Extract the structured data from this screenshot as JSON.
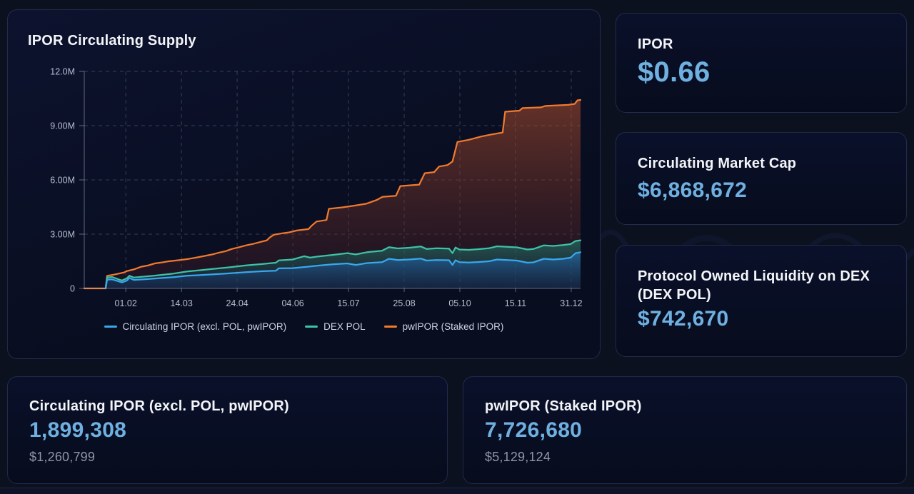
{
  "chart_card": {
    "title": "IPOR Circulating Supply"
  },
  "chart_data": {
    "type": "area",
    "title": "IPOR Circulating Supply",
    "unit": "IPOR tokens, millions",
    "stacked": true,
    "grid": true,
    "legend_position": "bottom",
    "ylim": [
      0,
      12
    ],
    "y_tick_values": [
      0,
      3,
      6,
      9,
      12
    ],
    "y_tick_labels": [
      "0",
      "3.00M",
      "6.00M",
      "9.00M",
      "12.0M"
    ],
    "x_tick_labels": [
      "01.02",
      "14.03",
      "24.04",
      "04.06",
      "15.07",
      "25.08",
      "05.10",
      "15.11",
      "31.12"
    ],
    "x_tick_first_frac": 0.0837,
    "x_tick_step_frac": 0.11219,
    "series": [
      {
        "name": "Circulating IPOR (excl. POL, pwIPOR)",
        "color": "#38a7ec",
        "fill_top": "rgba(40,125,215,0.50)",
        "fill_bottom": "rgba(15,50,110,0.25)",
        "points": [
          [
            0.043,
            0
          ],
          [
            0.046,
            0.48
          ],
          [
            0.056,
            0.5
          ],
          [
            0.066,
            0.42
          ],
          [
            0.076,
            0.33
          ],
          [
            0.086,
            0.44
          ],
          [
            0.091,
            0.58
          ],
          [
            0.1,
            0.47
          ],
          [
            0.12,
            0.5
          ],
          [
            0.14,
            0.54
          ],
          [
            0.16,
            0.58
          ],
          [
            0.18,
            0.62
          ],
          [
            0.206,
            0.7
          ],
          [
            0.23,
            0.73
          ],
          [
            0.26,
            0.78
          ],
          [
            0.29,
            0.83
          ],
          [
            0.326,
            0.9
          ],
          [
            0.36,
            0.95
          ],
          [
            0.386,
            0.98
          ],
          [
            0.392,
            1.11
          ],
          [
            0.42,
            1.12
          ],
          [
            0.45,
            1.2
          ],
          [
            0.47,
            1.26
          ],
          [
            0.5,
            1.33
          ],
          [
            0.53,
            1.38
          ],
          [
            0.547,
            1.3
          ],
          [
            0.57,
            1.4
          ],
          [
            0.6,
            1.45
          ],
          [
            0.614,
            1.64
          ],
          [
            0.632,
            1.57
          ],
          [
            0.655,
            1.6
          ],
          [
            0.678,
            1.65
          ],
          [
            0.69,
            1.54
          ],
          [
            0.71,
            1.57
          ],
          [
            0.735,
            1.56
          ],
          [
            0.742,
            1.3
          ],
          [
            0.748,
            1.56
          ],
          [
            0.756,
            1.45
          ],
          [
            0.775,
            1.43
          ],
          [
            0.795,
            1.46
          ],
          [
            0.815,
            1.5
          ],
          [
            0.832,
            1.6
          ],
          [
            0.852,
            1.57
          ],
          [
            0.872,
            1.54
          ],
          [
            0.893,
            1.42
          ],
          [
            0.905,
            1.44
          ],
          [
            0.926,
            1.64
          ],
          [
            0.945,
            1.6
          ],
          [
            0.965,
            1.64
          ],
          [
            0.98,
            1.7
          ],
          [
            0.99,
            1.95
          ],
          [
            1,
            2.0
          ]
        ]
      },
      {
        "name": "DEX POL",
        "color": "#3dc2a6",
        "fill_top": "rgba(35,160,135,0.45)",
        "fill_bottom": "rgba(15,70,85,0.25)",
        "points": [
          [
            0.043,
            0
          ],
          [
            0.046,
            0.6
          ],
          [
            0.056,
            0.63
          ],
          [
            0.066,
            0.53
          ],
          [
            0.076,
            0.44
          ],
          [
            0.086,
            0.56
          ],
          [
            0.091,
            0.7
          ],
          [
            0.1,
            0.6
          ],
          [
            0.12,
            0.65
          ],
          [
            0.14,
            0.7
          ],
          [
            0.16,
            0.76
          ],
          [
            0.18,
            0.82
          ],
          [
            0.206,
            0.93
          ],
          [
            0.23,
            1.0
          ],
          [
            0.26,
            1.08
          ],
          [
            0.29,
            1.16
          ],
          [
            0.326,
            1.27
          ],
          [
            0.36,
            1.35
          ],
          [
            0.386,
            1.42
          ],
          [
            0.392,
            1.55
          ],
          [
            0.42,
            1.6
          ],
          [
            0.443,
            1.78
          ],
          [
            0.455,
            1.7
          ],
          [
            0.47,
            1.76
          ],
          [
            0.5,
            1.85
          ],
          [
            0.53,
            1.95
          ],
          [
            0.547,
            1.88
          ],
          [
            0.57,
            2.0
          ],
          [
            0.6,
            2.08
          ],
          [
            0.614,
            2.28
          ],
          [
            0.632,
            2.21
          ],
          [
            0.655,
            2.25
          ],
          [
            0.678,
            2.32
          ],
          [
            0.69,
            2.18
          ],
          [
            0.71,
            2.22
          ],
          [
            0.735,
            2.2
          ],
          [
            0.742,
            1.95
          ],
          [
            0.748,
            2.26
          ],
          [
            0.756,
            2.15
          ],
          [
            0.775,
            2.13
          ],
          [
            0.795,
            2.17
          ],
          [
            0.815,
            2.22
          ],
          [
            0.832,
            2.33
          ],
          [
            0.852,
            2.3
          ],
          [
            0.872,
            2.27
          ],
          [
            0.893,
            2.15
          ],
          [
            0.905,
            2.18
          ],
          [
            0.926,
            2.38
          ],
          [
            0.945,
            2.35
          ],
          [
            0.965,
            2.4
          ],
          [
            0.98,
            2.45
          ],
          [
            0.99,
            2.62
          ],
          [
            1,
            2.66
          ]
        ]
      },
      {
        "name": "pwIPOR (Staked IPOR)",
        "color": "#ef7a2e",
        "fill_top": "rgba(185,82,44,0.52)",
        "fill_bottom": "rgba(60,25,40,0.32)",
        "points": [
          [
            0,
            0
          ],
          [
            0.043,
            0
          ],
          [
            0.046,
            0.7
          ],
          [
            0.06,
            0.76
          ],
          [
            0.08,
            0.88
          ],
          [
            0.085,
            0.95
          ],
          [
            0.1,
            1.05
          ],
          [
            0.115,
            1.2
          ],
          [
            0.13,
            1.28
          ],
          [
            0.142,
            1.38
          ],
          [
            0.155,
            1.43
          ],
          [
            0.17,
            1.5
          ],
          [
            0.19,
            1.56
          ],
          [
            0.21,
            1.63
          ],
          [
            0.225,
            1.7
          ],
          [
            0.24,
            1.78
          ],
          [
            0.258,
            1.88
          ],
          [
            0.272,
            1.98
          ],
          [
            0.285,
            2.06
          ],
          [
            0.297,
            2.18
          ],
          [
            0.31,
            2.26
          ],
          [
            0.326,
            2.38
          ],
          [
            0.34,
            2.46
          ],
          [
            0.355,
            2.57
          ],
          [
            0.368,
            2.66
          ],
          [
            0.374,
            2.82
          ],
          [
            0.382,
            2.97
          ],
          [
            0.4,
            3.05
          ],
          [
            0.413,
            3.1
          ],
          [
            0.428,
            3.2
          ],
          [
            0.452,
            3.28
          ],
          [
            0.458,
            3.46
          ],
          [
            0.468,
            3.7
          ],
          [
            0.488,
            3.78
          ],
          [
            0.493,
            4.4
          ],
          [
            0.52,
            4.48
          ],
          [
            0.545,
            4.58
          ],
          [
            0.568,
            4.68
          ],
          [
            0.59,
            4.9
          ],
          [
            0.601,
            5.06
          ],
          [
            0.628,
            5.12
          ],
          [
            0.637,
            5.66
          ],
          [
            0.675,
            5.74
          ],
          [
            0.686,
            6.37
          ],
          [
            0.705,
            6.43
          ],
          [
            0.715,
            6.74
          ],
          [
            0.732,
            6.82
          ],
          [
            0.742,
            7.02
          ],
          [
            0.752,
            8.1
          ],
          [
            0.775,
            8.22
          ],
          [
            0.8,
            8.4
          ],
          [
            0.818,
            8.5
          ],
          [
            0.843,
            8.62
          ],
          [
            0.848,
            9.77
          ],
          [
            0.877,
            9.83
          ],
          [
            0.883,
            9.97
          ],
          [
            0.92,
            10.01
          ],
          [
            0.929,
            10.09
          ],
          [
            0.975,
            10.15
          ],
          [
            0.988,
            10.2
          ],
          [
            0.994,
            10.4
          ],
          [
            1,
            10.42
          ]
        ]
      }
    ]
  },
  "stat_cards": {
    "price": {
      "label": "IPOR",
      "value": "$0.66"
    },
    "market_cap": {
      "label": "Circulating Market Cap",
      "value": "$6,868,672"
    },
    "dex_pol": {
      "label": "Protocol Owned Liquidity on DEX (DEX POL)",
      "value": "$742,670"
    },
    "circulating": {
      "label": "Circulating IPOR (excl. POL, pwIPOR)",
      "value": "1,899,308",
      "usd_value": "$1,260,799"
    },
    "pwipor": {
      "label": "pwIPOR (Staked IPOR)",
      "value": "7,726,680",
      "usd_value": "$5,129,124"
    }
  },
  "colors": {
    "page_background": "#0c1120",
    "card_background": "#0a102a",
    "accent_value": "#6fb0e1",
    "heading_text": "#f3f5f9",
    "secondary_text": "#8e96aa",
    "blue_line": "#38a7ec",
    "teal_line": "#3dc2a6",
    "orange_line": "#ef7a2e"
  }
}
